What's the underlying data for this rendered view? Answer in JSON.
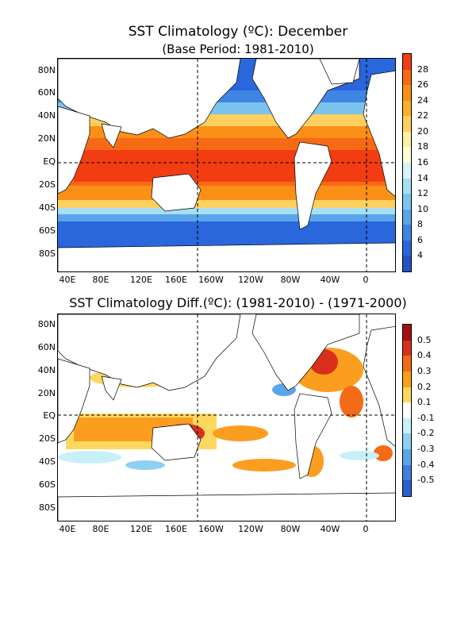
{
  "top": {
    "title": "SST Climatology (ºC): December",
    "subtitle": "(Base Period: 1981-2010)",
    "colorbar_labels": [
      "28",
      "26",
      "24",
      "22",
      "20",
      "18",
      "16",
      "14",
      "12",
      "10",
      "8",
      "6",
      "4"
    ],
    "colorbar_colors": [
      "#f23d12",
      "#f76a15",
      "#fb8f18",
      "#fcb02a",
      "#fdd060",
      "#fff0a8",
      "#ffffd6",
      "#d8f4f8",
      "#a6e0f2",
      "#7cc4ee",
      "#5aa4ea",
      "#3f85e4",
      "#2a66dc",
      "#2252c8"
    ]
  },
  "bottom": {
    "title": "SST Climatology Diff.(ºC): (1981-2010) - (1971-2000)",
    "colorbar_labels": [
      "0.5",
      "0.4",
      "0.3",
      "0.2",
      "0.1",
      "-0.1",
      "-0.2",
      "-0.3",
      "-0.4",
      "-0.5"
    ],
    "colorbar_colors": [
      "#a50f0f",
      "#d8301c",
      "#f36a18",
      "#fb9e1f",
      "#fdd860",
      "#ffffff",
      "#c8f0f8",
      "#8ed0f2",
      "#5aa6ea",
      "#3f7fe0",
      "#2a5fd0"
    ]
  },
  "lat_labels": [
    "80N",
    "60N",
    "40N",
    "20N",
    "EQ",
    "20S",
    "40S",
    "60S",
    "80S"
  ],
  "lon_labels": [
    "40E",
    "80E",
    "120E",
    "160E",
    "160W",
    "120W",
    "80W",
    "40W",
    "0"
  ]
}
